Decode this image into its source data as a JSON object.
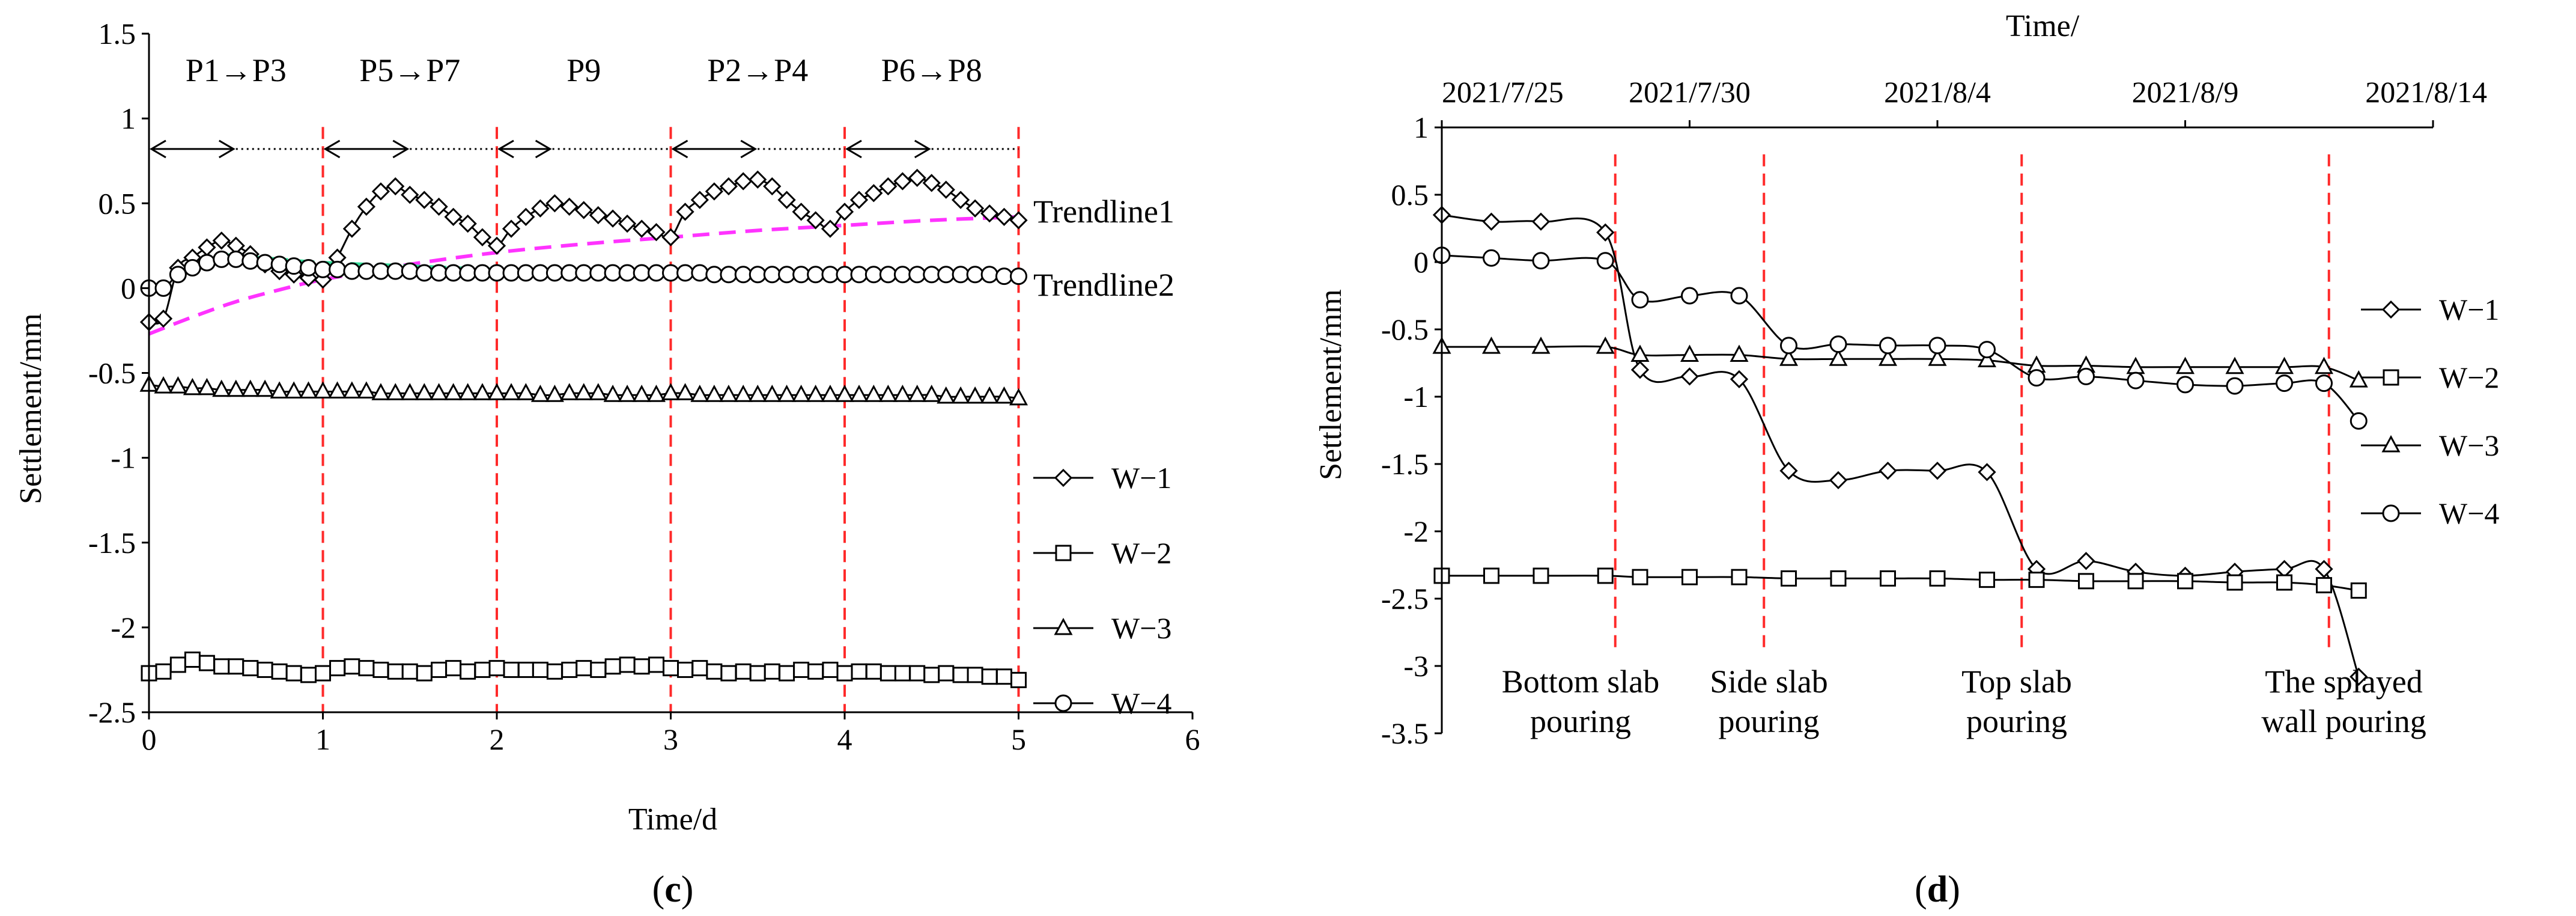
{
  "chart_data": [
    {
      "panel_label": "(c)",
      "panel_letter": "c",
      "type": "line",
      "xlabel": "Time/d",
      "ylabel": "Settlement/mm",
      "xlim": [
        0,
        6
      ],
      "ylim": [
        -2.5,
        1.5
      ],
      "x_ticks": [
        0,
        1,
        2,
        3,
        4,
        5,
        6
      ],
      "y_ticks": [
        -2.5,
        -2,
        -1.5,
        -1,
        -0.5,
        0,
        0.5,
        1,
        1.5
      ],
      "x_tick_labels": [
        "0",
        "1",
        "2",
        "3",
        "4",
        "5",
        "6"
      ],
      "y_tick_labels": [
        "-2.5",
        "-2",
        "-1.5",
        "-1",
        "-0.5",
        "0",
        "0.5",
        "1",
        "1.5"
      ],
      "vlines": [
        1,
        2,
        3,
        4,
        5
      ],
      "stages": [
        {
          "label": "P1→P3",
          "from": 0,
          "to": 0.5
        },
        {
          "label": "P5→P7",
          "from": 1,
          "to": 1.5
        },
        {
          "label": "P9",
          "from": 2,
          "to": 2.32
        },
        {
          "label": "P2→P4",
          "from": 3,
          "to": 3.5
        },
        {
          "label": "P6→P8",
          "from": 4,
          "to": 4.5
        }
      ],
      "stage_y": 0.82,
      "series": [
        {
          "name": "W−1",
          "marker": "diamond",
          "x": [
            0,
            0.083,
            0.167,
            0.25,
            0.333,
            0.417,
            0.5,
            0.583,
            0.667,
            0.75,
            0.833,
            0.917,
            1.0,
            1.083,
            1.167,
            1.25,
            1.333,
            1.417,
            1.5,
            1.583,
            1.667,
            1.75,
            1.833,
            1.917,
            2.0,
            2.083,
            2.167,
            2.25,
            2.333,
            2.417,
            2.5,
            2.583,
            2.667,
            2.75,
            2.833,
            2.917,
            3.0,
            3.083,
            3.167,
            3.25,
            3.333,
            3.417,
            3.5,
            3.583,
            3.667,
            3.75,
            3.833,
            3.917,
            4.0,
            4.083,
            4.167,
            4.25,
            4.333,
            4.417,
            4.5,
            4.583,
            4.667,
            4.75,
            4.833,
            4.917,
            5.0
          ],
          "y": [
            -0.2,
            -0.18,
            0.12,
            0.18,
            0.24,
            0.28,
            0.25,
            0.2,
            0.14,
            0.1,
            0.08,
            0.06,
            0.05,
            0.18,
            0.35,
            0.48,
            0.57,
            0.6,
            0.55,
            0.52,
            0.48,
            0.42,
            0.38,
            0.3,
            0.25,
            0.35,
            0.42,
            0.47,
            0.5,
            0.48,
            0.46,
            0.43,
            0.41,
            0.38,
            0.35,
            0.33,
            0.3,
            0.45,
            0.52,
            0.57,
            0.6,
            0.63,
            0.64,
            0.6,
            0.52,
            0.45,
            0.4,
            0.35,
            0.45,
            0.52,
            0.56,
            0.6,
            0.63,
            0.65,
            0.62,
            0.58,
            0.52,
            0.47,
            0.44,
            0.42,
            0.4
          ]
        },
        {
          "name": "W−2",
          "marker": "square",
          "x": [
            0,
            0.083,
            0.167,
            0.25,
            0.333,
            0.417,
            0.5,
            0.583,
            0.667,
            0.75,
            0.833,
            0.917,
            1.0,
            1.083,
            1.167,
            1.25,
            1.333,
            1.417,
            1.5,
            1.583,
            1.667,
            1.75,
            1.833,
            1.917,
            2.0,
            2.083,
            2.167,
            2.25,
            2.333,
            2.417,
            2.5,
            2.583,
            2.667,
            2.75,
            2.833,
            2.917,
            3.0,
            3.083,
            3.167,
            3.25,
            3.333,
            3.417,
            3.5,
            3.583,
            3.667,
            3.75,
            3.833,
            3.917,
            4.0,
            4.083,
            4.167,
            4.25,
            4.333,
            4.417,
            4.5,
            4.583,
            4.667,
            4.75,
            4.833,
            4.917,
            5.0
          ],
          "y": [
            -2.27,
            -2.26,
            -2.22,
            -2.19,
            -2.21,
            -2.23,
            -2.23,
            -2.24,
            -2.25,
            -2.26,
            -2.27,
            -2.28,
            -2.27,
            -2.24,
            -2.23,
            -2.24,
            -2.25,
            -2.26,
            -2.26,
            -2.27,
            -2.25,
            -2.24,
            -2.26,
            -2.25,
            -2.24,
            -2.25,
            -2.25,
            -2.25,
            -2.26,
            -2.25,
            -2.24,
            -2.25,
            -2.23,
            -2.22,
            -2.23,
            -2.22,
            -2.24,
            -2.25,
            -2.24,
            -2.26,
            -2.27,
            -2.26,
            -2.27,
            -2.26,
            -2.27,
            -2.25,
            -2.26,
            -2.25,
            -2.27,
            -2.26,
            -2.26,
            -2.27,
            -2.27,
            -2.27,
            -2.28,
            -2.27,
            -2.28,
            -2.28,
            -2.29,
            -2.29,
            -2.31
          ]
        },
        {
          "name": "W−3",
          "marker": "triangle",
          "x": [
            0,
            0.083,
            0.167,
            0.25,
            0.333,
            0.417,
            0.5,
            0.583,
            0.667,
            0.75,
            0.833,
            0.917,
            1.0,
            1.083,
            1.167,
            1.25,
            1.333,
            1.417,
            1.5,
            1.583,
            1.667,
            1.75,
            1.833,
            1.917,
            2.0,
            2.083,
            2.167,
            2.25,
            2.333,
            2.417,
            2.5,
            2.583,
            2.667,
            2.75,
            2.833,
            2.917,
            3.0,
            3.083,
            3.167,
            3.25,
            3.333,
            3.417,
            3.5,
            3.583,
            3.667,
            3.75,
            3.833,
            3.917,
            4.0,
            4.083,
            4.167,
            4.25,
            4.333,
            4.417,
            4.5,
            4.583,
            4.667,
            4.75,
            4.833,
            4.917,
            5.0
          ],
          "y": [
            -0.57,
            -0.58,
            -0.58,
            -0.59,
            -0.59,
            -0.6,
            -0.6,
            -0.6,
            -0.6,
            -0.61,
            -0.61,
            -0.61,
            -0.61,
            -0.61,
            -0.61,
            -0.61,
            -0.62,
            -0.62,
            -0.62,
            -0.62,
            -0.62,
            -0.62,
            -0.62,
            -0.62,
            -0.62,
            -0.62,
            -0.62,
            -0.63,
            -0.63,
            -0.62,
            -0.62,
            -0.62,
            -0.63,
            -0.63,
            -0.63,
            -0.63,
            -0.62,
            -0.62,
            -0.63,
            -0.63,
            -0.63,
            -0.63,
            -0.63,
            -0.63,
            -0.63,
            -0.63,
            -0.63,
            -0.63,
            -0.63,
            -0.63,
            -0.63,
            -0.63,
            -0.63,
            -0.63,
            -0.63,
            -0.64,
            -0.64,
            -0.64,
            -0.64,
            -0.64,
            -0.65
          ]
        },
        {
          "name": "W−4",
          "marker": "circle",
          "x": [
            0,
            0.083,
            0.167,
            0.25,
            0.333,
            0.417,
            0.5,
            0.583,
            0.667,
            0.75,
            0.833,
            0.917,
            1.0,
            1.083,
            1.167,
            1.25,
            1.333,
            1.417,
            1.5,
            1.583,
            1.667,
            1.75,
            1.833,
            1.917,
            2.0,
            2.083,
            2.167,
            2.25,
            2.333,
            2.417,
            2.5,
            2.583,
            2.667,
            2.75,
            2.833,
            2.917,
            3.0,
            3.083,
            3.167,
            3.25,
            3.333,
            3.417,
            3.5,
            3.583,
            3.667,
            3.75,
            3.833,
            3.917,
            4.0,
            4.083,
            4.167,
            4.25,
            4.333,
            4.417,
            4.5,
            4.583,
            4.667,
            4.75,
            4.833,
            4.917,
            5.0
          ],
          "y": [
            0.0,
            0.0,
            0.08,
            0.12,
            0.15,
            0.17,
            0.17,
            0.16,
            0.15,
            0.14,
            0.13,
            0.12,
            0.11,
            0.11,
            0.1,
            0.1,
            0.1,
            0.1,
            0.1,
            0.09,
            0.09,
            0.09,
            0.09,
            0.09,
            0.09,
            0.09,
            0.09,
            0.09,
            0.09,
            0.09,
            0.09,
            0.09,
            0.09,
            0.09,
            0.09,
            0.09,
            0.09,
            0.09,
            0.09,
            0.08,
            0.08,
            0.08,
            0.08,
            0.08,
            0.08,
            0.08,
            0.08,
            0.08,
            0.08,
            0.08,
            0.08,
            0.08,
            0.08,
            0.08,
            0.08,
            0.08,
            0.08,
            0.08,
            0.08,
            0.07,
            0.07
          ]
        }
      ],
      "trendlines": [
        {
          "name": "Trendline1",
          "color": "#ff33ff",
          "x": [
            0,
            0.25,
            0.5,
            0.75,
            1,
            1.5,
            2,
            2.5,
            3,
            3.5,
            4,
            4.5,
            5
          ],
          "y": [
            -0.27,
            -0.17,
            -0.08,
            -0.01,
            0.05,
            0.14,
            0.21,
            0.26,
            0.3,
            0.34,
            0.37,
            0.4,
            0.42
          ]
        },
        {
          "name": "Trendline2",
          "color": "#33dd99",
          "x": [
            0.4,
            0.5,
            0.75,
            1,
            1.5,
            2,
            2.5,
            3,
            3.5,
            4,
            4.5,
            5
          ],
          "y": [
            0.2,
            0.19,
            0.17,
            0.15,
            0.13,
            0.11,
            0.1,
            0.09,
            0.08,
            0.08,
            0.07,
            0.07
          ]
        }
      ],
      "legend": [
        "W−1",
        "W−2",
        "W−3",
        "W−4"
      ],
      "legend_position": "right"
    },
    {
      "panel_label": "(d)",
      "panel_letter": "d",
      "type": "line",
      "xlabel": "Time/",
      "x_axis_position": "top",
      "ylabel": "Settlement/mm",
      "xlim": [
        0,
        20
      ],
      "ylim": [
        -3.5,
        1
      ],
      "x_ticks": [
        0,
        5,
        10,
        15,
        20
      ],
      "x_tick_labels": [
        "2021/7/25",
        "2021/7/30",
        "2021/8/4",
        "2021/8/9",
        "2021/8/14"
      ],
      "y_ticks": [
        -3.5,
        -3,
        -2.5,
        -2,
        -1.5,
        -1,
        -0.5,
        0,
        0.5,
        1
      ],
      "y_tick_labels": [
        "-3.5",
        "-3",
        "-2.5",
        "-2",
        "-1.5",
        "-1",
        "-0.5",
        "0",
        "0.5",
        "1"
      ],
      "vlines": [
        3.5,
        6.5,
        11.7,
        17.9
      ],
      "annotations": [
        {
          "lines": [
            "Bottom slab",
            "pouring"
          ],
          "x": 2.8
        },
        {
          "lines": [
            "Side slab",
            "pouring"
          ],
          "x": 6.6
        },
        {
          "lines": [
            "Top slab",
            "pouring"
          ],
          "x": 11.6
        },
        {
          "lines": [
            "The splayed",
            "wall pouring"
          ],
          "x": 18.2
        }
      ],
      "series": [
        {
          "name": "W−1",
          "marker": "diamond",
          "x": [
            0,
            1,
            2,
            3.3,
            4,
            5,
            6,
            7,
            8,
            9,
            10,
            11,
            12,
            13,
            14,
            15,
            16,
            17,
            17.8,
            18.5
          ],
          "y": [
            0.35,
            0.3,
            0.3,
            0.22,
            -0.8,
            -0.85,
            -0.87,
            -1.55,
            -1.62,
            -1.55,
            -1.55,
            -1.56,
            -2.28,
            -2.22,
            -2.3,
            -2.33,
            -2.3,
            -2.28,
            -2.28,
            -3.08
          ]
        },
        {
          "name": "W−2",
          "marker": "square",
          "x": [
            0,
            1,
            2,
            3.3,
            4,
            5,
            6,
            7,
            8,
            9,
            10,
            11,
            12,
            13,
            14,
            15,
            16,
            17,
            17.8,
            18.5
          ],
          "y": [
            -2.33,
            -2.33,
            -2.33,
            -2.33,
            -2.34,
            -2.34,
            -2.34,
            -2.35,
            -2.35,
            -2.35,
            -2.35,
            -2.36,
            -2.36,
            -2.37,
            -2.37,
            -2.37,
            -2.38,
            -2.38,
            -2.4,
            -2.44
          ]
        },
        {
          "name": "W−3",
          "marker": "triangle",
          "x": [
            0,
            1,
            2,
            3.3,
            4,
            5,
            6,
            7,
            8,
            9,
            10,
            11,
            12,
            13,
            14,
            15,
            16,
            17,
            17.8,
            18.5
          ],
          "y": [
            -0.63,
            -0.63,
            -0.63,
            -0.63,
            -0.69,
            -0.69,
            -0.69,
            -0.72,
            -0.72,
            -0.72,
            -0.72,
            -0.73,
            -0.77,
            -0.77,
            -0.78,
            -0.78,
            -0.78,
            -0.78,
            -0.78,
            -0.88
          ]
        },
        {
          "name": "W−4",
          "marker": "circle",
          "x": [
            0,
            1,
            2,
            3.3,
            4,
            5,
            6,
            7,
            8,
            9,
            10,
            11,
            12,
            13,
            14,
            15,
            16,
            17,
            17.8,
            18.5
          ],
          "y": [
            0.05,
            0.03,
            0.01,
            0.01,
            -0.28,
            -0.25,
            -0.25,
            -0.62,
            -0.61,
            -0.62,
            -0.62,
            -0.65,
            -0.86,
            -0.85,
            -0.88,
            -0.91,
            -0.92,
            -0.9,
            -0.9,
            -1.18
          ]
        }
      ],
      "legend": [
        "W−1",
        "W−2",
        "W−3",
        "W−4"
      ],
      "legend_position": "right"
    }
  ]
}
